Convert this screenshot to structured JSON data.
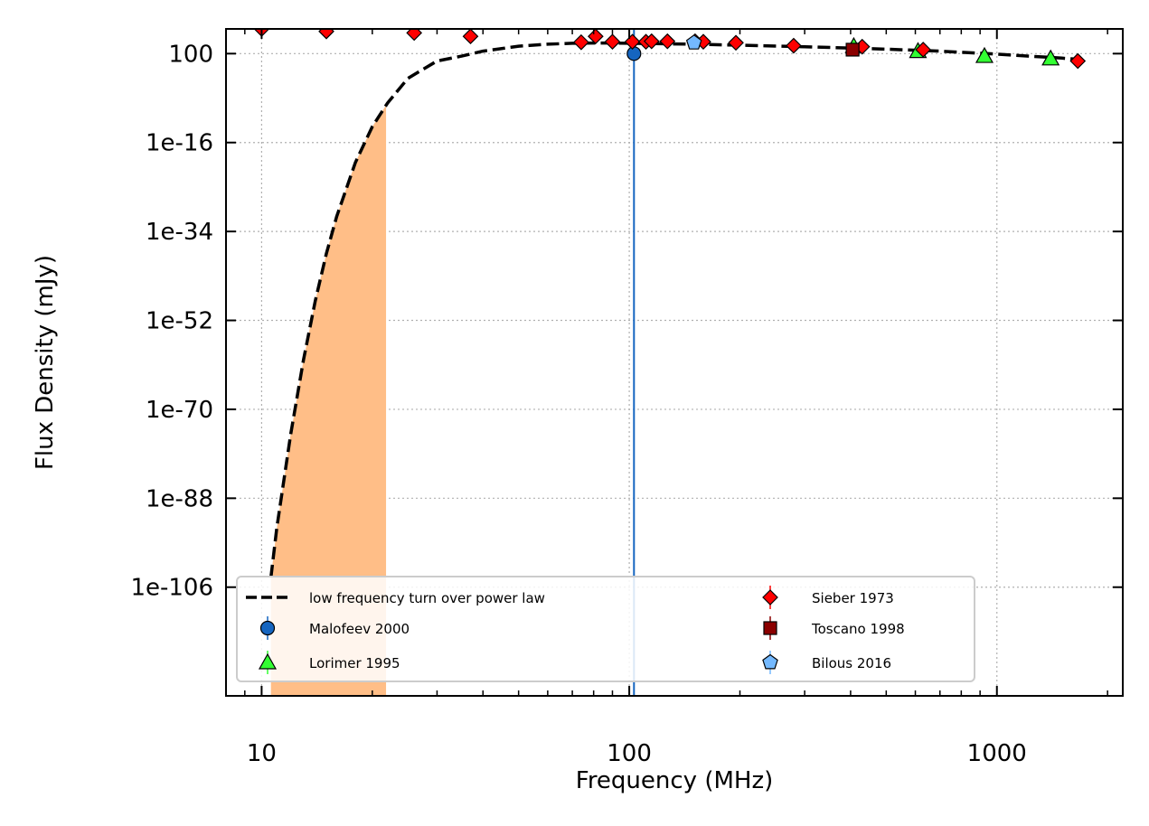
{
  "chart_data": {
    "type": "scatter",
    "title": "",
    "xlabel": "Frequency (MHz)",
    "ylabel": "Flux Density (mJy)",
    "x_scale": "log",
    "y_scale": "log",
    "xlim": [
      8,
      2200
    ],
    "ylim_log10": [
      -128,
      7
    ],
    "grid": true,
    "legend_position": "lower-left",
    "x_ticks": [
      {
        "value": 10,
        "label": "10"
      },
      {
        "value": 100,
        "label": "100"
      },
      {
        "value": 1000,
        "label": "1000"
      }
    ],
    "y_ticks": [
      {
        "log10": 2,
        "label": "100"
      },
      {
        "log10": -16,
        "label": "1e-16"
      },
      {
        "log10": -34,
        "label": "1e-34"
      },
      {
        "log10": -52,
        "label": "1e-52"
      },
      {
        "log10": -70,
        "label": "1e-70"
      },
      {
        "log10": -88,
        "label": "1e-88"
      },
      {
        "log10": -106,
        "label": "1e-106"
      }
    ],
    "fit_model": {
      "name": "low frequency turn over power law",
      "color": "#000000",
      "style": "dashed",
      "x": [
        10.6,
        11,
        12,
        13,
        14,
        15,
        16,
        18,
        20,
        22,
        25,
        30,
        35,
        40,
        50,
        60,
        70,
        80,
        90,
        100,
        150,
        200,
        300,
        500,
        700,
        1000,
        1500,
        1700
      ],
      "log10_y": [
        -104,
        -94,
        -75,
        -60,
        -48,
        -38.5,
        -31,
        -20,
        -12.8,
        -8,
        -3,
        0.5,
        1.5,
        2.5,
        3.5,
        3.9,
        4.1,
        4.15,
        4.15,
        4.1,
        3.9,
        3.7,
        3.4,
        2.9,
        2.5,
        1.9,
        1.1,
        0.8
      ]
    },
    "uncertainty_band": {
      "color": "#ffbe87",
      "x_max": 21.8
    },
    "reference_line": {
      "x": 103,
      "color": "#1565c0"
    },
    "series": [
      {
        "name": "Malofeev 2000",
        "marker": "circle",
        "color": "#1565c0",
        "x": [
          103
        ],
        "log10_y": [
          2
        ]
      },
      {
        "name": "Lorimer 1995",
        "marker": "triangle",
        "color": "#33ff33",
        "x": [
          408,
          610,
          925,
          1400
        ],
        "log10_y": [
          3.5,
          2.5,
          1.5,
          1.0
        ]
      },
      {
        "name": "Sieber 1973",
        "marker": "diamond",
        "color": "#ff0000",
        "x": [
          10,
          15,
          26,
          37,
          74,
          81,
          90,
          102,
          111,
          115,
          127,
          151,
          159,
          195,
          280,
          430,
          630,
          1660
        ],
        "log10_y": [
          7,
          6.5,
          6.2,
          5.5,
          4.3,
          5.5,
          4.4,
          4.4,
          4.4,
          4.5,
          4.5,
          4.5,
          4.4,
          4.2,
          3.6,
          3.4,
          2.8,
          0.5
        ]
      },
      {
        "name": "Toscano 1998",
        "marker": "square",
        "color": "#8b0000",
        "x": [
          405
        ],
        "log10_y": [
          2.8
        ]
      },
      {
        "name": "Bilous 2016",
        "marker": "pentagon",
        "color": "#74b9ff",
        "x": [
          150
        ],
        "log10_y": [
          4.2
        ]
      }
    ]
  }
}
